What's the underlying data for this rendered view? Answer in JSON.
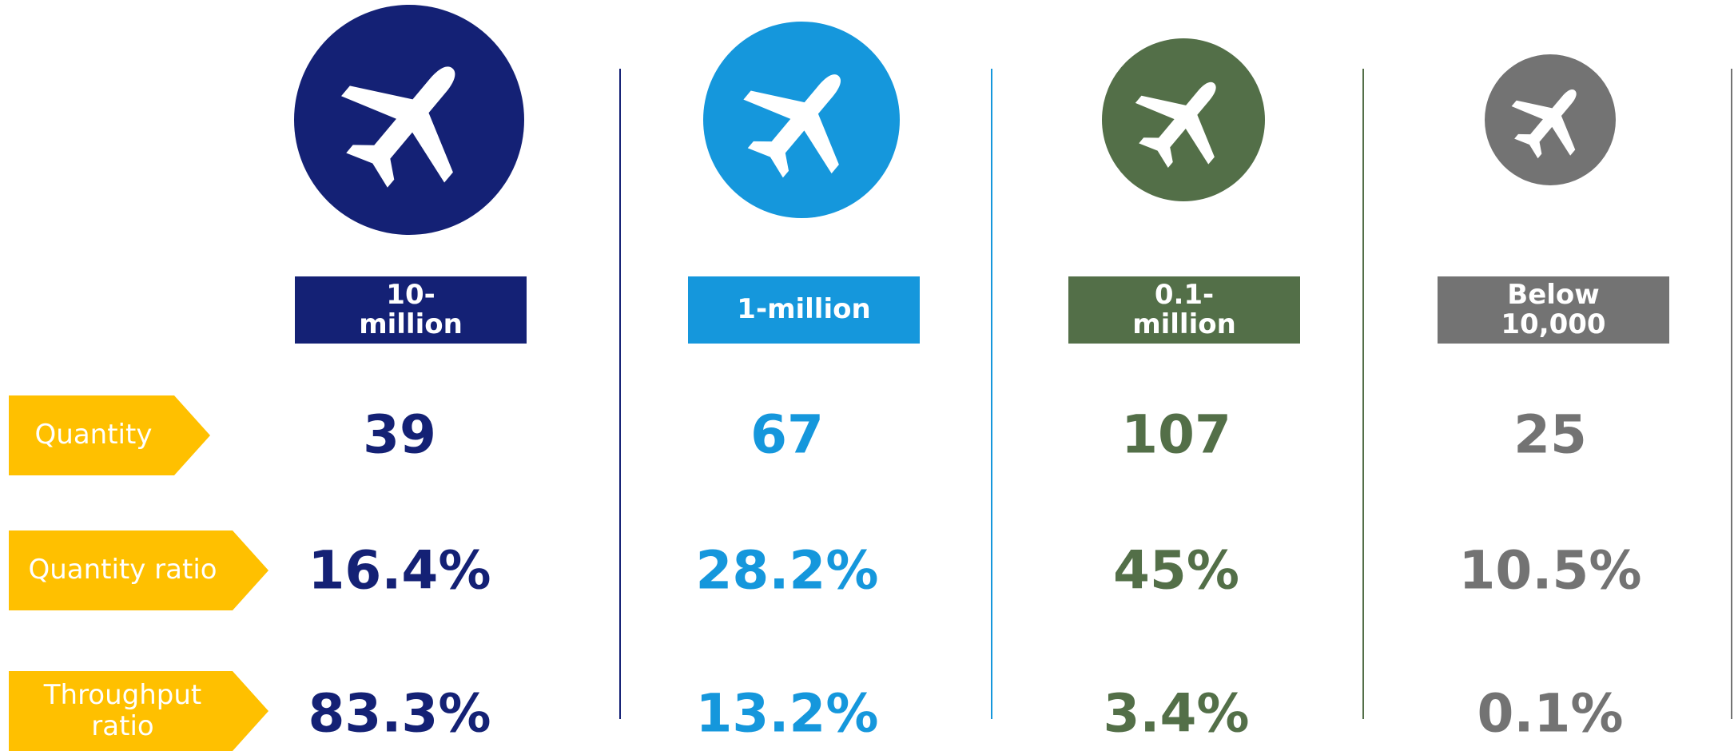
{
  "row_labels": {
    "quantity": "Quantity",
    "quantity_ratio": "Quantity ratio",
    "throughput_ratio": "Throughput ratio"
  },
  "row_label_color": "#ffc000",
  "columns": [
    {
      "label": "10-million",
      "color": "#142175",
      "quantity": "39",
      "quantity_ratio": "16.4%",
      "throughput_ratio": "83.3%"
    },
    {
      "label": "1-million",
      "color": "#1597dc",
      "quantity": "67",
      "quantity_ratio": "28.2%",
      "throughput_ratio": "13.2%"
    },
    {
      "label": "0.1-million",
      "color": "#536f48",
      "quantity": "107",
      "quantity_ratio": "45%",
      "throughput_ratio": "3.4%"
    },
    {
      "label": "Below 10,000",
      "color": "#737373",
      "quantity": "25",
      "quantity_ratio": "10.5%",
      "throughput_ratio": "0.1%"
    }
  ]
}
